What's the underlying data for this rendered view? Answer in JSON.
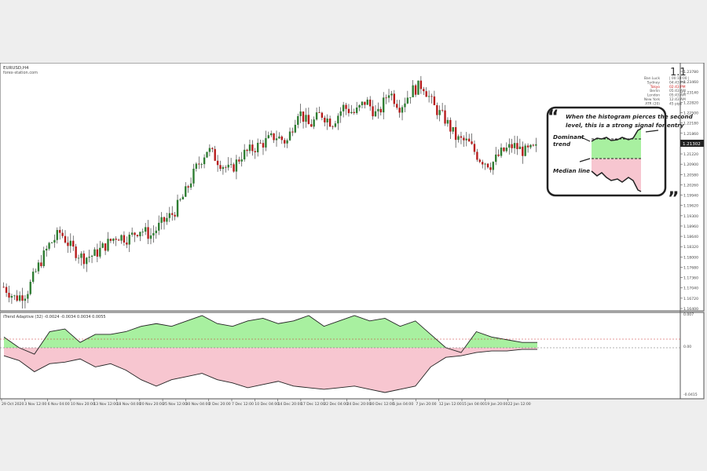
{
  "symbol": "EURUSD,H4",
  "site": "forex-station.com",
  "version_badge": "1.1",
  "sessions": [
    {
      "city": "Ban Luck",
      "time": "| 00:18:00 |",
      "color": "#555555"
    },
    {
      "city": "Sydney",
      "time": "04:43 PM",
      "color": "#555555"
    },
    {
      "city": "Tokyo",
      "time": "02:43 PM",
      "color": "#cc2222"
    },
    {
      "city": "Berlin",
      "time": "05:43 AM",
      "color": "#555555"
    },
    {
      "city": "London",
      "time": "05:43 AM",
      "color": "#555555"
    },
    {
      "city": "New York",
      "time": "12:43 AM",
      "color": "#555555"
    },
    {
      "city": "ATR (20)",
      "time": "45 pips",
      "color": "#555555"
    }
  ],
  "indicator_label": "iTrend Adaptive (32) -0.0024 -0.0034 0.0034 0.0055",
  "callout": {
    "line1": "When the histogram pierces the second",
    "line2": "level, this is a strong signal for entry",
    "dominant1": "Dominant",
    "dominant2": "trend",
    "median": "Median line"
  },
  "colors": {
    "bull": "#2e7d32",
    "bear": "#b71c1c",
    "hist_up": "#a8f0a0",
    "hist_down": "#f7c6d0",
    "price_tag": "#222222"
  },
  "chart_data": [
    {
      "type": "candlestick",
      "title": "EURUSD,H4",
      "y_ticks": [
        "1.23780",
        "1.23460",
        "1.23140",
        "1.22820",
        "1.22500",
        "1.22180",
        "1.21860",
        "1.21540",
        "1.21220",
        "1.20900",
        "1.20580",
        "1.20260",
        "1.19940",
        "1.19620",
        "1.19300",
        "1.18960",
        "1.18640",
        "1.18320",
        "1.18000",
        "1.17680",
        "1.17360",
        "1.17040",
        "1.16720",
        "1.16400"
      ],
      "current_price": "1.21302",
      "ylim": [
        1.164,
        1.2378
      ],
      "x_ticks": [
        "29 Oct 2020",
        "3 Nov 12:00",
        "6 Nov 04:00",
        "10 Nov 20:00",
        "13 Nov 12:00",
        "18 Nov 04:00",
        "20 Nov 20:00",
        "25 Nov 12:00",
        "30 Nov 04:00",
        "2 Dec 20:00",
        "7 Dec 12:00",
        "10 Dec 04:00",
        "14 Dec 20:00",
        "17 Dec 12:00",
        "22 Dec 04:00",
        "24 Dec 20:00",
        "30 Dec 12:00",
        "5 Jan 04:00",
        "7 Jan 20:00",
        "12 Jan 12:00",
        "15 Jan 04:00",
        "19 Jan 20:00",
        "22 Jan 12:00"
      ],
      "close_trend": [
        1.17,
        1.1665,
        1.168,
        1.176,
        1.183,
        1.187,
        1.182,
        1.179,
        1.18,
        1.183,
        1.186,
        1.185,
        1.188,
        1.186,
        1.19,
        1.193,
        1.199,
        1.207,
        1.213,
        1.209,
        1.206,
        1.211,
        1.213,
        1.215,
        1.217,
        1.215,
        1.225,
        1.22,
        1.224,
        1.221,
        1.226,
        1.224,
        1.228,
        1.223,
        1.231,
        1.226,
        1.231,
        1.233,
        1.226,
        1.222,
        1.216,
        1.215,
        1.21,
        1.208,
        1.212,
        1.214,
        1.212,
        1.213
      ]
    },
    {
      "type": "area",
      "title": "iTrend Adaptive (32)",
      "y_ticks": [
        "0.007",
        "0.00",
        "-0.0415"
      ],
      "series": [
        {
          "name": "Dominant trend",
          "values": [
            0.004,
            0.0,
            -0.004,
            0.006,
            0.007,
            0.002,
            0.005,
            0.005,
            0.006,
            0.008,
            0.009,
            0.008,
            0.01,
            0.012,
            0.009,
            0.008,
            0.01,
            0.011,
            0.009,
            0.01,
            0.012,
            0.008,
            0.01,
            0.012,
            0.01,
            0.011,
            0.008,
            0.01,
            0.005,
            0.0,
            -0.003,
            0.006,
            0.004,
            0.003,
            0.002,
            0.002
          ]
        },
        {
          "name": "Median line",
          "values": [
            -0.005,
            -0.008,
            -0.015,
            -0.01,
            -0.009,
            -0.007,
            -0.012,
            -0.01,
            -0.014,
            -0.02,
            -0.024,
            -0.02,
            -0.018,
            -0.016,
            -0.02,
            -0.022,
            -0.025,
            -0.023,
            -0.021,
            -0.024,
            -0.025,
            -0.026,
            -0.025,
            -0.024,
            -0.026,
            -0.028,
            -0.026,
            -0.024,
            -0.012,
            -0.006,
            -0.005,
            -0.003,
            -0.002,
            -0.002,
            -0.001,
            -0.001
          ]
        }
      ]
    }
  ]
}
